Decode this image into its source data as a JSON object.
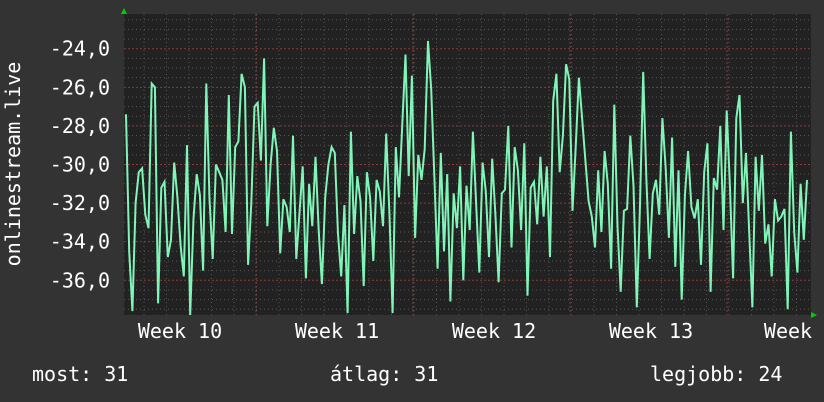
{
  "chart_data": {
    "type": "line",
    "ylabel": "onlinestream.live",
    "ylim": [
      -37.8,
      -22.2
    ],
    "yticks": [
      "-24,0",
      "-26,0",
      "-28,0",
      "-30,0",
      "-32,0",
      "-34,0",
      "-36,0"
    ],
    "ytick_values": [
      -24,
      -26,
      -28,
      -30,
      -32,
      -34,
      -36
    ],
    "xticks": [
      "Week 10",
      "Week 11",
      "Week 12",
      "Week 13",
      "Week"
    ],
    "grid": true,
    "line_color": "#7ff5b8",
    "values": [
      -27.4,
      -34.5,
      -37.6,
      -32,
      -30.4,
      -30.2,
      -32.6,
      -33.3,
      -25.8,
      -26,
      -37.2,
      -31.2,
      -30.9,
      -34.8,
      -33.9,
      -29.9,
      -31.7,
      -34.2,
      -35.8,
      -29,
      -37.8,
      -32.8,
      -30.5,
      -31.6,
      -35.5,
      -25.8,
      -31.8,
      -34.9,
      -30,
      -30.4,
      -30.8,
      -33.5,
      -26.4,
      -33.6,
      -29.1,
      -28.8,
      -25.3,
      -26,
      -35.2,
      -32,
      -27,
      -26.8,
      -29.8,
      -24.5,
      -33.2,
      -30,
      -28.1,
      -29.3,
      -34.6,
      -31.8,
      -32.2,
      -33.5,
      -28.5,
      -34.9,
      -32.5,
      -30.1,
      -35.9,
      -31,
      -33.2,
      -29.6,
      -33.4,
      -36.2,
      -31.7,
      -30,
      -29.1,
      -29.4,
      -33.6,
      -35.8,
      -32.1,
      -37.7,
      -28.3,
      -33.6,
      -30.6,
      -31.9,
      -36.3,
      -30.4,
      -31.7,
      -35,
      -30.8,
      -31.4,
      -33.2,
      -28.4,
      -32.5,
      -37.7,
      -29.1,
      -31.7,
      -27.9,
      -24.3,
      -30.6,
      -25.4,
      -33.8,
      -29.5,
      -30.8,
      -29.2,
      -23.6,
      -26.1,
      -30.7,
      -35.4,
      -29.4,
      -34.5,
      -30.5,
      -37.1,
      -31.5,
      -33.3,
      -30.1,
      -36,
      -31.1,
      -33.4,
      -28.3,
      -32,
      -35.6,
      -29.9,
      -31.4,
      -34.8,
      -29.7,
      -32.6,
      -36.1,
      -31.5,
      -31.3,
      -28,
      -34.3,
      -29.1,
      -30.3,
      -33.4,
      -28.9,
      -36.8,
      -31.2,
      -30.9,
      -33.1,
      -29.6,
      -32.7,
      -30.1,
      -34.8,
      -26.7,
      -25.3,
      -30.4,
      -28.5,
      -24.8,
      -25.6,
      -32.4,
      -29.1,
      -25.5,
      -27.6,
      -29.8,
      -31.9,
      -32.7,
      -34.3,
      -30.3,
      -33.5,
      -29.3,
      -31,
      -35.4,
      -26.9,
      -33.2,
      -36.6,
      -32.4,
      -32.3,
      -28.5,
      -31.1,
      -37.4,
      -32.1,
      -25.2,
      -30.8,
      -34.9,
      -31.5,
      -30.8,
      -32.6,
      -27.6,
      -30.2,
      -33.8,
      -28.6,
      -35.3,
      -30.3,
      -37,
      -31.6,
      -29.3,
      -32.2,
      -32.8,
      -31.8,
      -35.2,
      -30.4,
      -28.9,
      -36.6,
      -30.7,
      -31.3,
      -28,
      -33.4,
      -27.2,
      -31.1,
      -35.9,
      -27.6,
      -26.4,
      -32,
      -29.4,
      -33.5,
      -37.4,
      -29.6,
      -32.4,
      -29.5,
      -34.1,
      -33.1,
      -35.8,
      -31.8,
      -32.9,
      -32.7,
      -32.3,
      -37.5,
      -28.3,
      -33.5,
      -35.6,
      -31,
      -33.9,
      -30.8
    ]
  },
  "legend": {
    "current": "most: 31",
    "average": "átlag: 31",
    "max": "legjobb: 24"
  }
}
